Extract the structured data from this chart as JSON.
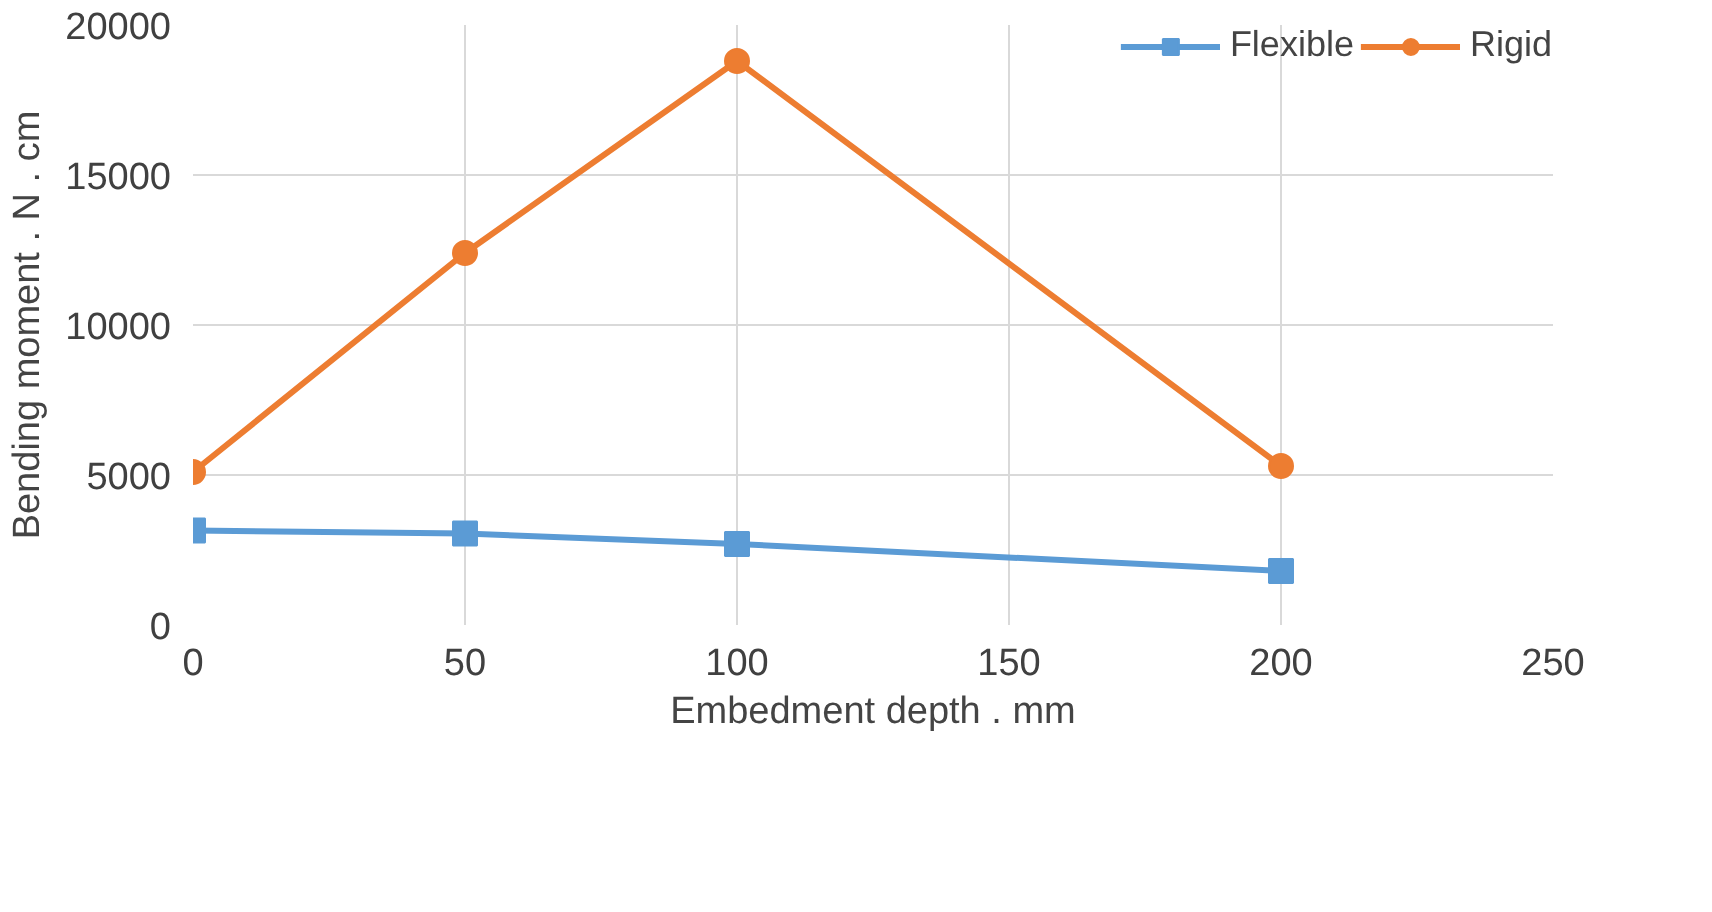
{
  "chart_data": {
    "type": "line",
    "xlabel": "Embedment depth . mm",
    "ylabel": "Bending moment . N . cm",
    "x": [
      0,
      50,
      100,
      200
    ],
    "series": [
      {
        "name": "Flexible",
        "color": "#5b9bd5",
        "marker": "square",
        "values": [
          3150,
          3050,
          2700,
          1800
        ]
      },
      {
        "name": "Rigid",
        "color": "#ed7d31",
        "marker": "circle",
        "values": [
          5100,
          12400,
          18800,
          5300
        ]
      }
    ],
    "xlim": [
      0,
      250
    ],
    "xticks": [
      0,
      50,
      100,
      150,
      200,
      250
    ],
    "ylim": [
      0,
      20000
    ],
    "yticks": [
      0,
      5000,
      10000,
      15000,
      20000
    ],
    "grid": true,
    "legend": "top right"
  }
}
